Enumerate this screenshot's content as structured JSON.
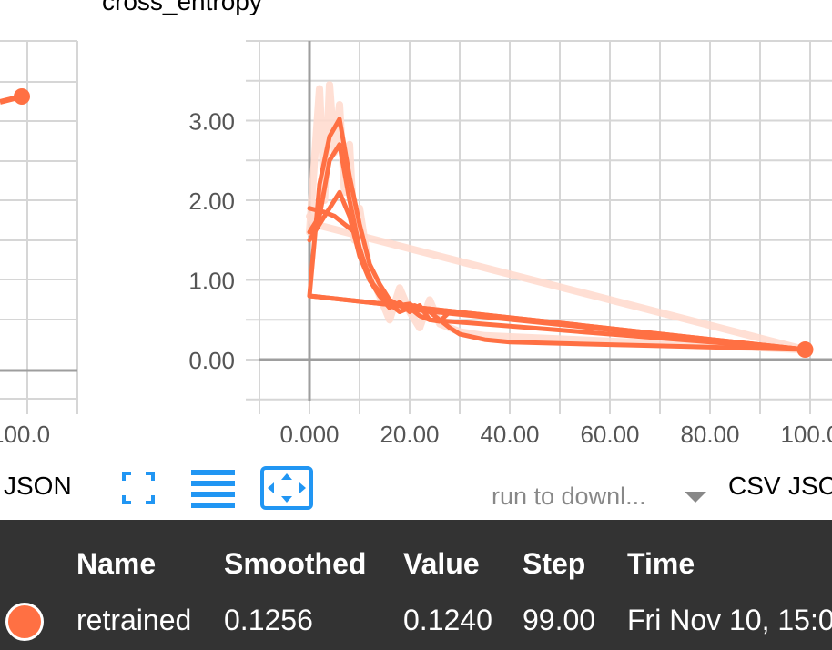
{
  "chart": {
    "title": "cross_entropy"
  },
  "chart_data": [
    {
      "type": "line",
      "title": "",
      "note": "partially visible chart at left edge",
      "x_tick_labels": [
        "100.0"
      ],
      "series": [
        {
          "name": "retrained",
          "color": "#ff7043",
          "x": [
            99
          ],
          "y": [
            0.3
          ]
        }
      ]
    },
    {
      "type": "line",
      "title": "cross_entropy",
      "xlabel": "",
      "ylabel": "",
      "xlim": [
        -10,
        104
      ],
      "ylim": [
        -0.5,
        4.0
      ],
      "x_ticks": [
        0,
        20,
        40,
        60,
        80,
        100
      ],
      "x_tick_labels": [
        "0.000",
        "20.00",
        "40.00",
        "60.00",
        "80.00",
        "100.0"
      ],
      "y_ticks": [
        0,
        1,
        2,
        3
      ],
      "y_tick_labels": [
        "0.00",
        "1.00",
        "2.00",
        "3.00"
      ],
      "grid": true,
      "series": [
        {
          "name": "retrained (raw)",
          "color": "#ffd9cc",
          "x": [
            0,
            2,
            3,
            4,
            5,
            6,
            7,
            8,
            9,
            10,
            12,
            14,
            16,
            18,
            20,
            22,
            24,
            26,
            30,
            35,
            99
          ],
          "y": [
            1.6,
            3.4,
            2.0,
            3.45,
            2.6,
            3.2,
            2.1,
            2.7,
            1.5,
            1.9,
            1.1,
            0.8,
            0.5,
            0.9,
            0.6,
            0.4,
            0.75,
            0.45,
            0.35,
            0.3,
            0.124
          ]
        },
        {
          "name": "retrained (raw)",
          "color": "#ffd9cc",
          "x": [
            0,
            1,
            99
          ],
          "y": [
            1.8,
            1.7,
            0.124
          ]
        },
        {
          "name": "retrained",
          "color": "#ff7043",
          "x": [
            0,
            2,
            4,
            6,
            8,
            10,
            12,
            14,
            16,
            18,
            20,
            22,
            24,
            26,
            28,
            30,
            35,
            40,
            99,
            0
          ],
          "y": [
            0.8,
            2.2,
            2.8,
            3.02,
            2.3,
            1.7,
            1.2,
            0.95,
            0.75,
            0.68,
            0.7,
            0.62,
            0.6,
            0.5,
            0.4,
            0.32,
            0.25,
            0.22,
            0.1256,
            0.8
          ]
        },
        {
          "name": "retrained",
          "color": "#ff7043",
          "x": [
            0,
            2,
            4,
            6,
            8,
            10,
            12,
            14,
            16,
            18,
            20,
            22,
            24,
            26,
            28,
            99,
            0
          ],
          "y": [
            1.6,
            1.8,
            2.5,
            2.7,
            2.0,
            1.4,
            1.0,
            0.8,
            0.65,
            0.72,
            0.6,
            0.68,
            0.5,
            0.48,
            0.6,
            0.1256,
            0.8
          ]
        },
        {
          "name": "retrained",
          "color": "#ff7043",
          "x": [
            0,
            3,
            5,
            7,
            9,
            11,
            13,
            15,
            17,
            19,
            21,
            23,
            25,
            99
          ],
          "y": [
            1.9,
            1.85,
            1.8,
            1.7,
            1.6,
            1.2,
            0.9,
            0.75,
            0.7,
            0.65,
            0.68,
            0.62,
            0.6,
            0.1256
          ]
        },
        {
          "name": "retrained",
          "color": "#ff7043",
          "x": [
            0,
            2,
            4,
            6,
            8,
            10,
            12,
            14,
            16,
            18,
            20,
            22,
            24,
            99
          ],
          "y": [
            1.5,
            1.7,
            1.9,
            2.1,
            1.8,
            1.3,
            1.0,
            0.85,
            0.7,
            0.6,
            0.65,
            0.55,
            0.5,
            0.1256
          ]
        }
      ],
      "endpoint": {
        "x": 99,
        "y": 0.1256
      }
    }
  ],
  "toolbar": {
    "left_json_label": "JSON",
    "fit_domain_icon": "fullscreen-icon",
    "log_scale_icon": "list-lines-icon",
    "fit_icon": "fit-domain-icon",
    "icon_color": "#2196f3",
    "run_select_placeholder": "run to downl...",
    "csv_label": "CSV",
    "json_label": "JSC"
  },
  "tooltip": {
    "headers": {
      "name": "Name",
      "smoothed": "Smoothed",
      "value": "Value",
      "step": "Step",
      "time": "Time"
    },
    "row": {
      "name": "retrained",
      "smoothed": "0.1256",
      "value": "0.1240",
      "step": "99.00",
      "time": "Fri Nov 10, 15:0",
      "color": "#ff7043"
    }
  }
}
